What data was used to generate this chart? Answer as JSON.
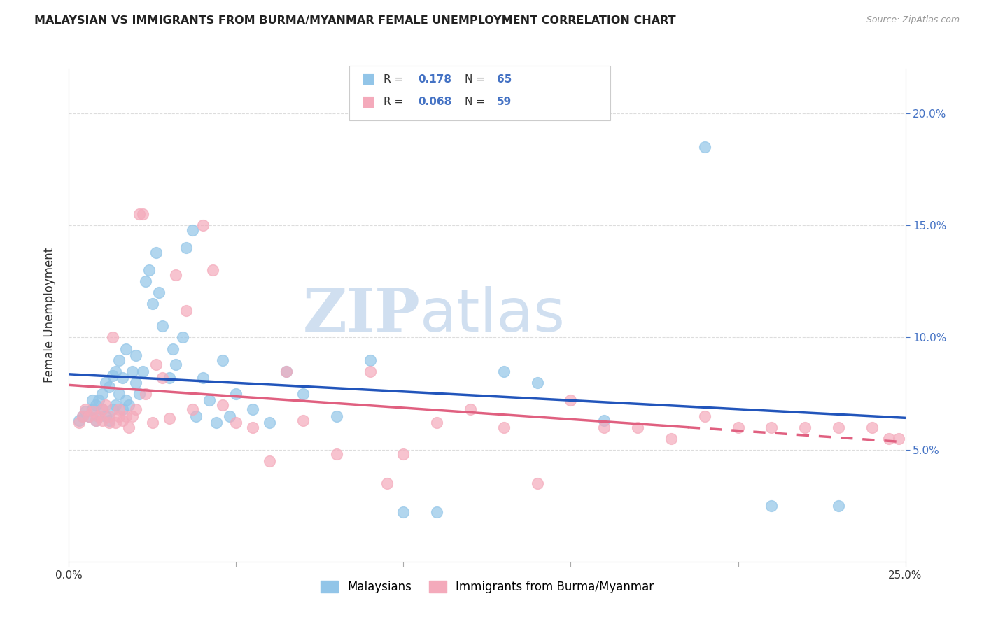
{
  "title": "MALAYSIAN VS IMMIGRANTS FROM BURMA/MYANMAR FEMALE UNEMPLOYMENT CORRELATION CHART",
  "source": "Source: ZipAtlas.com",
  "ylabel": "Female Unemployment",
  "xlim": [
    0.0,
    0.25
  ],
  "ylim": [
    0.0,
    0.22
  ],
  "ytick_positions": [
    0.05,
    0.1,
    0.15,
    0.2
  ],
  "xtick_positions": [
    0.0,
    0.05,
    0.1,
    0.15,
    0.2,
    0.25
  ],
  "xtick_labels": [
    "0.0%",
    "",
    "",
    "",
    "",
    "25.0%"
  ],
  "ytick_labels_right": [
    "5.0%",
    "10.0%",
    "15.0%",
    "20.0%"
  ],
  "series1_color": "#92C5E8",
  "series2_color": "#F4AABB",
  "trendline1_color": "#2255BB",
  "trendline2_color": "#E06080",
  "watermark_zip": "ZIP",
  "watermark_atlas": "atlas",
  "watermark_color": "#D0DFF0",
  "background_color": "#FFFFFF",
  "grid_color": "#DDDDDD",
  "series1_label": "Malaysians",
  "series2_label": "Immigrants from Burma/Myanmar",
  "blue_x": [
    0.003,
    0.004,
    0.005,
    0.006,
    0.007,
    0.007,
    0.008,
    0.008,
    0.009,
    0.009,
    0.01,
    0.01,
    0.011,
    0.011,
    0.012,
    0.012,
    0.013,
    0.013,
    0.014,
    0.014,
    0.015,
    0.015,
    0.016,
    0.016,
    0.017,
    0.017,
    0.018,
    0.019,
    0.02,
    0.02,
    0.021,
    0.022,
    0.023,
    0.024,
    0.025,
    0.026,
    0.027,
    0.028,
    0.03,
    0.031,
    0.032,
    0.034,
    0.035,
    0.037,
    0.038,
    0.04,
    0.042,
    0.044,
    0.046,
    0.048,
    0.05,
    0.055,
    0.06,
    0.065,
    0.07,
    0.08,
    0.09,
    0.1,
    0.11,
    0.13,
    0.14,
    0.16,
    0.19,
    0.21,
    0.23
  ],
  "blue_y": [
    0.063,
    0.065,
    0.067,
    0.065,
    0.068,
    0.072,
    0.063,
    0.07,
    0.065,
    0.072,
    0.068,
    0.075,
    0.065,
    0.08,
    0.063,
    0.078,
    0.068,
    0.083,
    0.07,
    0.085,
    0.075,
    0.09,
    0.068,
    0.082,
    0.072,
    0.095,
    0.07,
    0.085,
    0.08,
    0.092,
    0.075,
    0.085,
    0.125,
    0.13,
    0.115,
    0.138,
    0.12,
    0.105,
    0.082,
    0.095,
    0.088,
    0.1,
    0.14,
    0.148,
    0.065,
    0.082,
    0.072,
    0.062,
    0.09,
    0.065,
    0.075,
    0.068,
    0.062,
    0.085,
    0.075,
    0.065,
    0.09,
    0.022,
    0.022,
    0.085,
    0.08,
    0.063,
    0.185,
    0.025,
    0.025
  ],
  "pink_x": [
    0.003,
    0.004,
    0.005,
    0.006,
    0.007,
    0.008,
    0.009,
    0.01,
    0.01,
    0.011,
    0.012,
    0.012,
    0.013,
    0.014,
    0.015,
    0.015,
    0.016,
    0.017,
    0.018,
    0.019,
    0.02,
    0.021,
    0.022,
    0.023,
    0.025,
    0.026,
    0.028,
    0.03,
    0.032,
    0.035,
    0.037,
    0.04,
    0.043,
    0.046,
    0.05,
    0.055,
    0.06,
    0.065,
    0.07,
    0.08,
    0.09,
    0.095,
    0.1,
    0.11,
    0.12,
    0.13,
    0.14,
    0.15,
    0.16,
    0.17,
    0.18,
    0.19,
    0.2,
    0.21,
    0.22,
    0.23,
    0.24,
    0.245,
    0.248
  ],
  "pink_y": [
    0.062,
    0.065,
    0.068,
    0.065,
    0.067,
    0.063,
    0.065,
    0.063,
    0.068,
    0.07,
    0.062,
    0.065,
    0.1,
    0.062,
    0.065,
    0.068,
    0.063,
    0.065,
    0.06,
    0.065,
    0.068,
    0.155,
    0.155,
    0.075,
    0.062,
    0.088,
    0.082,
    0.064,
    0.128,
    0.112,
    0.068,
    0.15,
    0.13,
    0.07,
    0.062,
    0.06,
    0.045,
    0.085,
    0.063,
    0.048,
    0.085,
    0.035,
    0.048,
    0.062,
    0.068,
    0.06,
    0.035,
    0.072,
    0.06,
    0.06,
    0.055,
    0.065,
    0.06,
    0.06,
    0.06,
    0.06,
    0.06,
    0.055,
    0.055
  ]
}
